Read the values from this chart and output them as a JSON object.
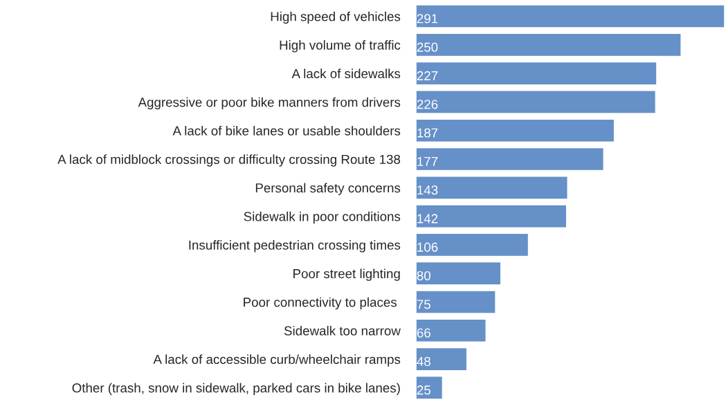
{
  "chart_data": {
    "type": "bar",
    "orientation": "horizontal",
    "categories": [
      "High speed of vehicles",
      "High volume of traffic",
      "A lack of sidewalks",
      "Aggressive or poor bike manners from drivers",
      "A lack of bike lanes or usable shoulders",
      "A lack of midblock crossings or difficulty crossing Route 138",
      "Personal safety concerns",
      "Sidewalk in poor conditions",
      "Insufficient pedestrian crossing times",
      "Poor street lighting",
      "Poor connectivity to places ",
      "Sidewalk too narrow",
      "A lack of accessible curb/wheelchair ramps",
      "Other (trash, snow in sidewalk, parked cars in bike lanes)"
    ],
    "values": [
      291,
      250,
      227,
      226,
      187,
      177,
      143,
      142,
      106,
      80,
      75,
      66,
      48,
      25
    ],
    "color": "#6690c8",
    "data_labels": true,
    "grid": false,
    "legend": false
  }
}
